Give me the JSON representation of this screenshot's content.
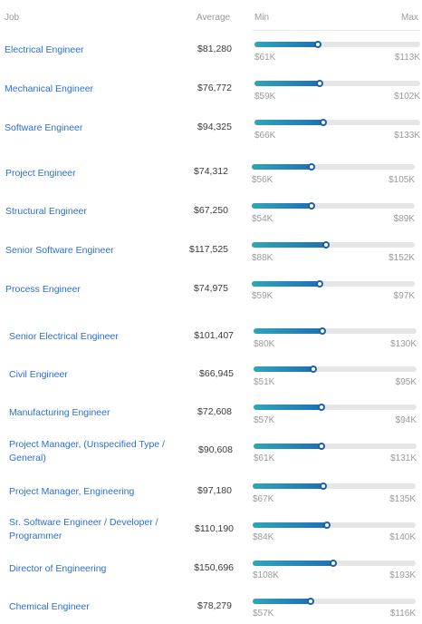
{
  "header": {
    "job": "Job",
    "average": "Average",
    "min": "Min",
    "max": "Max"
  },
  "rows": [
    {
      "job": "Electrical Engineer",
      "average": "$81,280",
      "min": "$61K",
      "max": "$113K",
      "fill": 0.39
    },
    {
      "job": "Mechanical Engineer",
      "average": "$76,772",
      "min": "$59K",
      "max": "$102K",
      "fill": 0.4
    },
    {
      "job": "Software Engineer",
      "average": "$94,325",
      "min": "$66K",
      "max": "$133K",
      "fill": 0.42
    },
    {
      "job": "Project Engineer",
      "average": "$74,312",
      "min": "$56K",
      "max": "$105K",
      "fill": 0.37
    },
    {
      "job": "Structural Engineer",
      "average": "$67,250",
      "min": "$54K",
      "max": "$89K",
      "fill": 0.37
    },
    {
      "job": "Senior Software Engineer",
      "average": "$117,525",
      "min": "$88K",
      "max": "$152K",
      "fill": 0.46
    },
    {
      "job": "Process Engineer",
      "average": "$74,975",
      "min": "$59K",
      "max": "$97K",
      "fill": 0.42
    },
    {
      "job": "Senior Electrical Engineer",
      "average": "$101,407",
      "min": "$80K",
      "max": "$130K",
      "fill": 0.43
    },
    {
      "job": "Civil Engineer",
      "average": "$66,945",
      "min": "$51K",
      "max": "$95K",
      "fill": 0.37
    },
    {
      "job": "Manufacturing Engineer",
      "average": "$72,608",
      "min": "$57K",
      "max": "$94K",
      "fill": 0.42
    },
    {
      "job": "Project Manager, (Unspecified Type / General)",
      "average": "$90,608",
      "min": "$61K",
      "max": "$131K",
      "fill": 0.42
    },
    {
      "job": "Project Manager, Engineering",
      "average": "$97,180",
      "min": "$67K",
      "max": "$135K",
      "fill": 0.44
    },
    {
      "job": "Sr. Software Engineer / Developer / Programmer",
      "average": "$110,190",
      "min": "$84K",
      "max": "$140K",
      "fill": 0.46
    },
    {
      "job": "Director of Engineering",
      "average": "$150,696",
      "min": "$108K",
      "max": "$193K",
      "fill": 0.5
    },
    {
      "job": "Chemical Engineer",
      "average": "$78,279",
      "min": "$57K",
      "max": "$116K",
      "fill": 0.36
    }
  ]
}
